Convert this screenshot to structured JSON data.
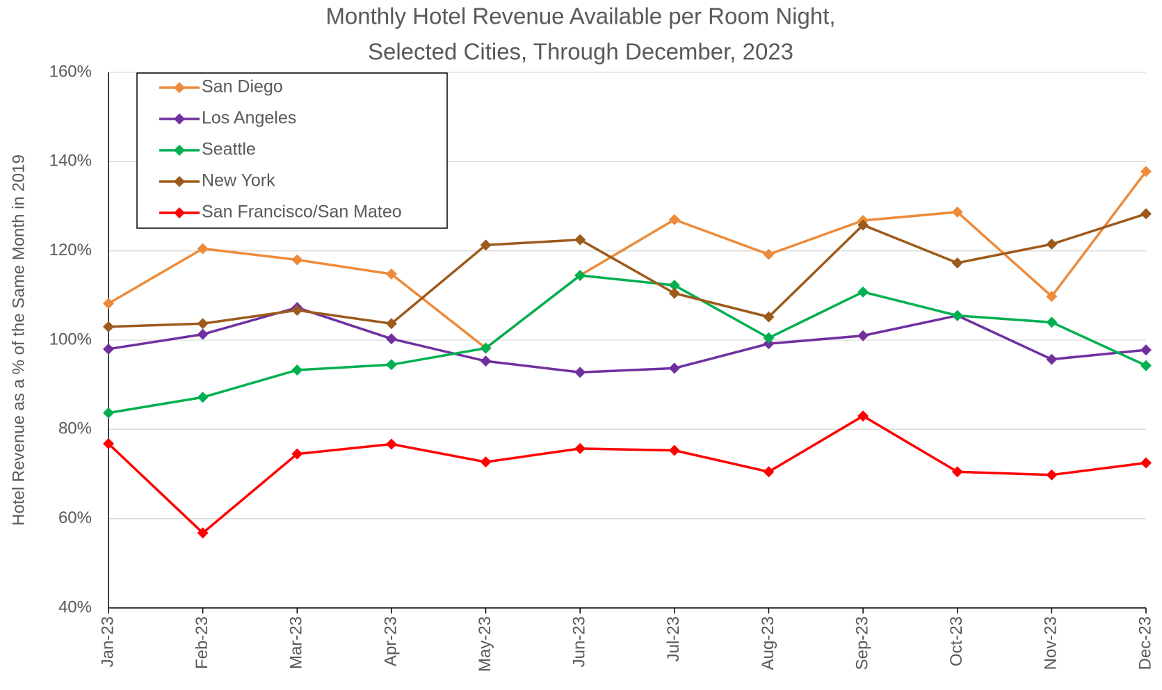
{
  "chart_data": {
    "type": "line",
    "title": [
      "Monthly Hotel Revenue Available per Room Night,",
      "Selected Cities, Through December, 2023"
    ],
    "y_label": "Hotel Revenue as a % of the  Same Month in 2019",
    "categories": [
      "Jan-23",
      "Feb-23",
      "Mar-23",
      "Apr-23",
      "May-23",
      "Jun-23",
      "Jul-23",
      "Aug-23",
      "Sep-23",
      "Oct-23",
      "Nov-23",
      "Dec-23"
    ],
    "series": [
      {
        "name": "San Diego",
        "color": "#ed8b3a",
        "values": [
          108.2,
          120.5,
          118,
          114.8,
          98.2,
          114.5,
          127,
          119.2,
          126.8,
          128.7,
          109.8,
          137.8
        ]
      },
      {
        "name": "Los Angeles",
        "color": "#7030a0",
        "values": [
          98,
          101.3,
          107.3,
          100.3,
          95.3,
          92.8,
          93.7,
          99.2,
          101,
          105.5,
          95.7,
          97.8
        ]
      },
      {
        "name": "Seattle",
        "color": "#00b050",
        "values": [
          83.7,
          87.2,
          93.3,
          94.5,
          98.2,
          114.5,
          112.3,
          100.5,
          110.8,
          105.5,
          104,
          94.3
        ]
      },
      {
        "name": "New York",
        "color": "#9c5a1b",
        "values": [
          103,
          103.7,
          106.7,
          103.7,
          121.3,
          122.5,
          110.5,
          105.2,
          125.8,
          117.3,
          121.5,
          128.3
        ]
      },
      {
        "name": "San Francisco/San Mateo",
        "color": "#ff0000",
        "values": [
          76.8,
          56.8,
          74.5,
          76.7,
          72.7,
          75.7,
          75.3,
          70.5,
          83,
          70.5,
          69.8,
          72.5
        ]
      }
    ],
    "ylim": [
      40,
      160
    ],
    "yticks": [
      {
        "value": 40,
        "label": "40%"
      },
      {
        "value": 60,
        "label": "60%"
      },
      {
        "value": 80,
        "label": "80%"
      },
      {
        "value": 100,
        "label": "100%"
      },
      {
        "value": 120,
        "label": "120%"
      },
      {
        "value": 140,
        "label": "140%"
      },
      {
        "value": 160,
        "label": "160%"
      }
    ],
    "grid": true,
    "legend": "top-left"
  }
}
